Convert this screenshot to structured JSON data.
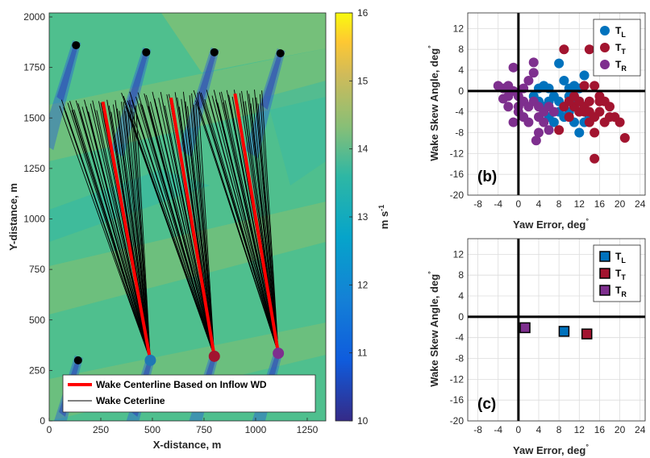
{
  "chart_data": [
    {
      "id": "a",
      "type": "heatmap",
      "xlabel": "X-distance, m",
      "ylabel": "Y-distance, m",
      "xlim": [
        0,
        1340
      ],
      "ylim": [
        0,
        2020
      ],
      "xticks": [
        0,
        250,
        500,
        750,
        1000,
        1250
      ],
      "yticks": [
        0,
        250,
        500,
        750,
        1000,
        1250,
        1500,
        1750,
        2000
      ],
      "colorbar": {
        "label_main": "m s",
        "label_exp": "-1",
        "range": [
          10,
          16
        ],
        "ticks": [
          10,
          11,
          12,
          13,
          14,
          15,
          16
        ]
      },
      "turbines": [
        {
          "x": 140,
          "y": 300,
          "color": "#000000"
        },
        {
          "x": 490,
          "y": 300,
          "color": "#1f77b4"
        },
        {
          "x": 800,
          "y": 320,
          "color": "#a2142f"
        },
        {
          "x": 1110,
          "y": 335,
          "color": "#7e2f8e"
        },
        {
          "x": 130,
          "y": 1860,
          "color": "#000000"
        },
        {
          "x": 470,
          "y": 1825,
          "color": "#000000"
        },
        {
          "x": 800,
          "y": 1825,
          "color": "#000000"
        },
        {
          "x": 1120,
          "y": 1820,
          "color": "#000000"
        }
      ],
      "centerlines_inflow": [
        {
          "x0": 490,
          "y0": 300,
          "x1": 260,
          "y1": 1580
        },
        {
          "x0": 800,
          "y0": 320,
          "x1": 590,
          "y1": 1600
        },
        {
          "x0": 1110,
          "y0": 335,
          "x1": 900,
          "y1": 1620
        }
      ],
      "wake_fans": [
        {
          "x0": 490,
          "y0": 300,
          "xmin": 50,
          "xmax": 420,
          "ymin": 1530,
          "ymax": 1590
        },
        {
          "x0": 800,
          "y0": 320,
          "xmin": 350,
          "xmax": 720,
          "ymin": 1555,
          "ymax": 1630
        },
        {
          "x0": 1110,
          "y0": 335,
          "xmin": 700,
          "xmax": 1030,
          "ymin": 1570,
          "ymax": 1640
        }
      ],
      "legend": [
        {
          "label": "Wake Centerline Based on Inflow WD",
          "color": "#ff0000"
        },
        {
          "label": "Wake Ceterline",
          "color": "#000000"
        }
      ]
    },
    {
      "id": "b",
      "type": "scatter",
      "panel_label": "(b)",
      "xlabel": "Yaw Error, deg",
      "xlabel_sup": "°",
      "ylabel": "Wake Skew Angle, deg",
      "ylabel_sup": "°",
      "xlim": [
        -10,
        25
      ],
      "ylim": [
        -20,
        15
      ],
      "xticks": [
        -8,
        -4,
        0,
        4,
        8,
        12,
        16,
        20,
        24
      ],
      "yticks": [
        -20,
        -16,
        -12,
        -8,
        -4,
        0,
        4,
        8,
        12
      ],
      "series": [
        {
          "name": "T",
          "sub": "L",
          "color": "#0072bd",
          "points": [
            [
              4,
              0.5
            ],
            [
              5,
              1
            ],
            [
              6,
              0.5
            ],
            [
              7,
              -1
            ],
            [
              8,
              -2
            ],
            [
              9,
              -3
            ],
            [
              10,
              -1
            ],
            [
              11,
              -2
            ],
            [
              12,
              -4
            ],
            [
              13,
              -3
            ],
            [
              14,
              -5
            ],
            [
              8,
              5.3
            ],
            [
              9,
              2
            ],
            [
              10,
              0.5
            ],
            [
              12,
              0.5
            ],
            [
              13,
              3
            ],
            [
              6,
              -5
            ],
            [
              7,
              -6
            ],
            [
              9,
              -5
            ],
            [
              11,
              -6
            ],
            [
              12,
              -8
            ],
            [
              5,
              -3
            ],
            [
              6,
              -2
            ],
            [
              10,
              -4
            ],
            [
              11,
              1
            ],
            [
              4,
              -2
            ],
            [
              3,
              -1
            ],
            [
              8,
              -4
            ],
            [
              12,
              -2
            ],
            [
              13,
              -6
            ]
          ]
        },
        {
          "name": "T",
          "sub": "T",
          "color": "#a2142f",
          "points": [
            [
              9,
              8
            ],
            [
              14,
              8
            ],
            [
              13,
              1
            ],
            [
              15,
              1
            ],
            [
              16,
              -1
            ],
            [
              17,
              -2
            ],
            [
              18,
              -3
            ],
            [
              19,
              -5
            ],
            [
              20,
              -6
            ],
            [
              21,
              -9
            ],
            [
              15,
              -13
            ],
            [
              14,
              -6
            ],
            [
              12,
              -4
            ],
            [
              11,
              -3
            ],
            [
              10,
              -2
            ],
            [
              16,
              -4
            ],
            [
              13,
              -3
            ],
            [
              14,
              -2
            ],
            [
              15,
              -5
            ],
            [
              17,
              -6
            ],
            [
              12,
              -2
            ],
            [
              9,
              -3
            ],
            [
              8,
              -7.5
            ],
            [
              15,
              -8
            ],
            [
              18,
              -5
            ],
            [
              13,
              -4
            ],
            [
              16,
              -2
            ],
            [
              14,
              -4
            ],
            [
              11,
              -1
            ],
            [
              10,
              -5
            ]
          ]
        },
        {
          "name": "T",
          "sub": "R",
          "color": "#7e2f8e",
          "points": [
            [
              -4,
              1
            ],
            [
              -3,
              0.5
            ],
            [
              -2,
              1
            ],
            [
              -1,
              0
            ],
            [
              0,
              -1
            ],
            [
              1,
              -2
            ],
            [
              2,
              -3
            ],
            [
              -1,
              4.5
            ],
            [
              3,
              5.5
            ],
            [
              3,
              3.5
            ],
            [
              2,
              2
            ],
            [
              1,
              0.5
            ],
            [
              -2,
              -1
            ],
            [
              -3,
              -1.5
            ],
            [
              0,
              -4
            ],
            [
              1,
              -5
            ],
            [
              2,
              -6
            ],
            [
              4,
              -5
            ],
            [
              4,
              -8
            ],
            [
              5,
              -6
            ],
            [
              6,
              -7.5
            ],
            [
              -1,
              -6
            ],
            [
              0,
              -3
            ],
            [
              3,
              -2
            ],
            [
              4,
              -3
            ],
            [
              5,
              -4
            ],
            [
              3.5,
              -9.5
            ],
            [
              7,
              -4
            ],
            [
              6,
              -3
            ],
            [
              -2,
              -3
            ]
          ]
        }
      ],
      "legend_loc": "top-right"
    },
    {
      "id": "c",
      "type": "scatter",
      "panel_label": "(c)",
      "xlabel": "Yaw Error, deg",
      "xlabel_sup": "°",
      "ylabel": "Wake Skew Angle, deg",
      "ylabel_sup": "°",
      "xlim": [
        -10,
        25
      ],
      "ylim": [
        -20,
        15
      ],
      "xticks": [
        -8,
        -4,
        0,
        4,
        8,
        12,
        16,
        20,
        24
      ],
      "yticks": [
        -20,
        -16,
        -12,
        -8,
        -4,
        0,
        4,
        8,
        12
      ],
      "series": [
        {
          "name": "T",
          "sub": "L",
          "color": "#0072bd",
          "points": [
            [
              9,
              -2.8
            ]
          ]
        },
        {
          "name": "T",
          "sub": "T",
          "color": "#a2142f",
          "points": [
            [
              13.5,
              -3.3
            ]
          ]
        },
        {
          "name": "T",
          "sub": "R",
          "color": "#7e2f8e",
          "points": [
            [
              1.3,
              -2.1
            ]
          ]
        }
      ],
      "legend_loc": "top-right"
    }
  ]
}
